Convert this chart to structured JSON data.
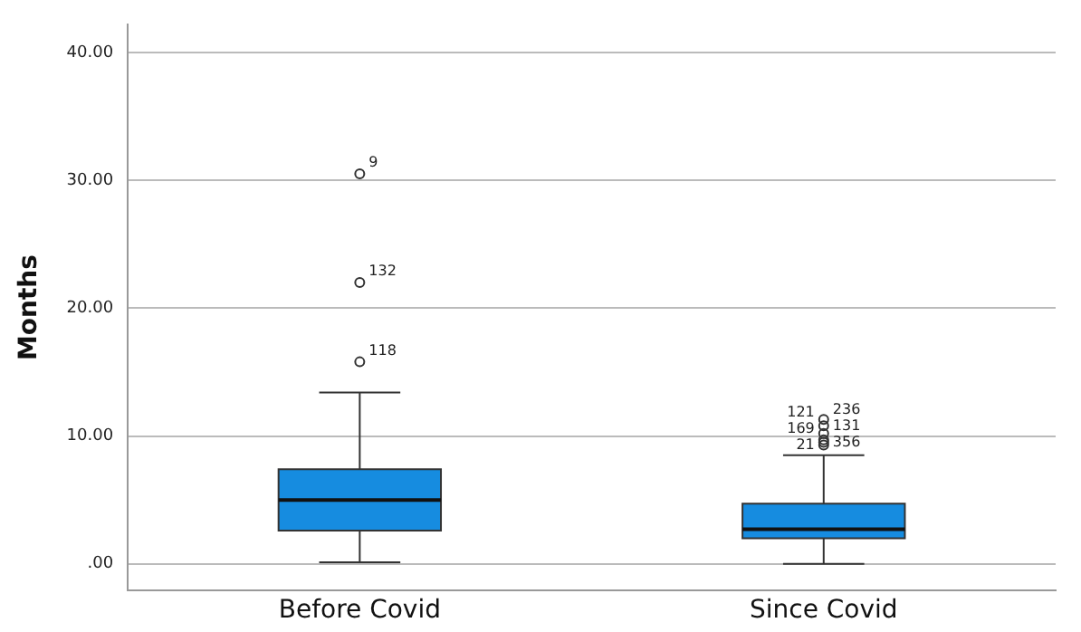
{
  "chart_data": {
    "type": "box",
    "ylabel": "Months",
    "categories": [
      "Before Covid",
      "Since Covid"
    ],
    "boxes": [
      {
        "low": 0.13,
        "q1": 2.6,
        "median": 5.0,
        "q3": 7.4,
        "high": 13.4,
        "outliers": [
          15.8,
          22.0,
          30.5
        ]
      },
      {
        "low": 0,
        "q1": 2.0,
        "median": 2.7,
        "q3": 4.7,
        "high": 8.5,
        "outliers": [
          9.3,
          9.5,
          9.7,
          10.2,
          10.8,
          11.3
        ]
      }
    ],
    "color": "#168ce0",
    "ylim": [
      -2.1,
      42.2
    ],
    "yticks": [
      {
        "value": 0,
        "label": ".00"
      },
      {
        "value": 10,
        "label": "10.00"
      },
      {
        "value": 20,
        "label": "20.00"
      },
      {
        "value": 30,
        "label": "30.00"
      },
      {
        "value": 40,
        "label": "40.00"
      }
    ],
    "grid": "y",
    "annotations": [
      "118",
      "132",
      "9",
      "21",
      "356",
      "169",
      "131",
      "121",
      "236"
    ]
  }
}
